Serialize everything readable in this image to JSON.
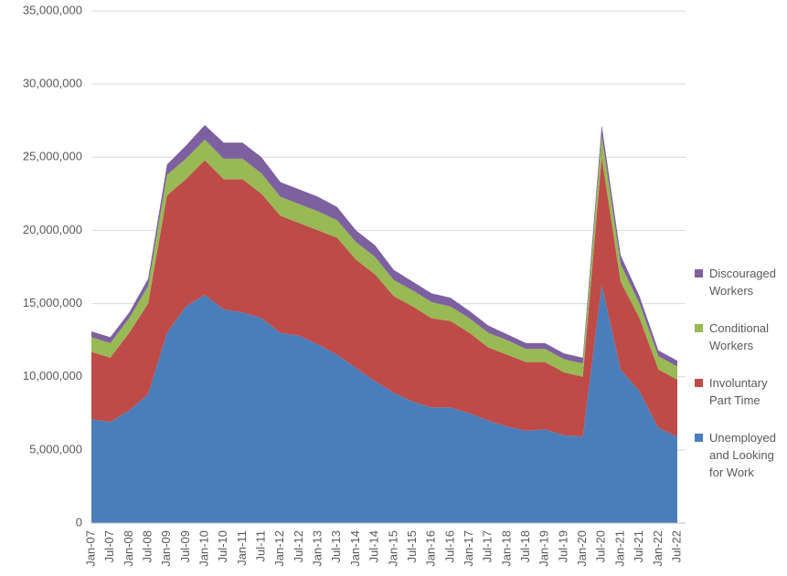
{
  "chart_data": {
    "type": "stacked-area",
    "categories": [
      "Jan-07",
      "Jul-07",
      "Jan-08",
      "Jul-08",
      "Jan-09",
      "Jul-09",
      "Jan-10",
      "Jul-10",
      "Jan-11",
      "Jul-11",
      "Jan-12",
      "Jul-12",
      "Jan-13",
      "Jul-13",
      "Jan-14",
      "Jul-14",
      "Jan-15",
      "Jul-15",
      "Jan-16",
      "Jul-16",
      "Jan-17",
      "Jul-17",
      "Jan-18",
      "Jul-18",
      "Jan-19",
      "Jul-19",
      "Jan-20",
      "Jul-20",
      "Jan-21",
      "Jul-21",
      "Jan-22",
      "Jul-22"
    ],
    "series": [
      {
        "name": "Unemployed and Looking for Work",
        "color": "#4a7ebb",
        "values": [
          7100000,
          6900000,
          7700000,
          8800000,
          13000000,
          14800000,
          15600000,
          14600000,
          14400000,
          14000000,
          13000000,
          12800000,
          12200000,
          11500000,
          10600000,
          9700000,
          8900000,
          8300000,
          7900000,
          7900000,
          7500000,
          7000000,
          6600000,
          6300000,
          6400000,
          6000000,
          5900000,
          16300000,
          10500000,
          9000000,
          6500000,
          5900000
        ]
      },
      {
        "name": "Involuntary Part Time",
        "color": "#be4b48",
        "values": [
          4600000,
          4400000,
          5300000,
          6200000,
          9400000,
          8700000,
          9200000,
          8900000,
          9100000,
          8500000,
          8000000,
          7700000,
          7800000,
          8000000,
          7400000,
          7300000,
          6600000,
          6500000,
          6100000,
          5900000,
          5500000,
          5000000,
          4900000,
          4700000,
          4600000,
          4300000,
          4100000,
          8700000,
          6000000,
          5000000,
          4000000,
          3900000
        ]
      },
      {
        "name": "Conditional Workers",
        "color": "#98b954",
        "values": [
          1000000,
          1000000,
          1000000,
          1200000,
          1400000,
          1400000,
          1400000,
          1400000,
          1400000,
          1400000,
          1300000,
          1300000,
          1300000,
          1200000,
          1200000,
          1200000,
          1100000,
          1100000,
          1100000,
          1000000,
          1000000,
          1000000,
          1000000,
          900000,
          900000,
          900000,
          900000,
          1500000,
          1200000,
          1000000,
          900000,
          900000
        ]
      },
      {
        "name": "Discouraged Workers",
        "color": "#7d60a0",
        "values": [
          400000,
          400000,
          400000,
          500000,
          700000,
          900000,
          1000000,
          1100000,
          1100000,
          1100000,
          1000000,
          1000000,
          1000000,
          900000,
          800000,
          800000,
          700000,
          600000,
          600000,
          600000,
          500000,
          500000,
          400000,
          400000,
          400000,
          400000,
          400000,
          700000,
          600000,
          500000,
          400000,
          400000
        ]
      }
    ],
    "ylim": [
      0,
      35000000
    ],
    "yticks": [
      0,
      {
        "value": 5000000,
        "label": "5,000,000"
      },
      {
        "value": 10000000,
        "label": "10,000,000"
      },
      {
        "value": 15000000,
        "label": "15,000,000"
      },
      {
        "value": 20000000,
        "label": "20,000,000"
      },
      {
        "value": 25000000,
        "label": "25,000,000"
      },
      {
        "value": 30000000,
        "label": "30,000,000"
      },
      {
        "value": 35000000,
        "label": "35,000,000"
      }
    ],
    "grid": true
  }
}
